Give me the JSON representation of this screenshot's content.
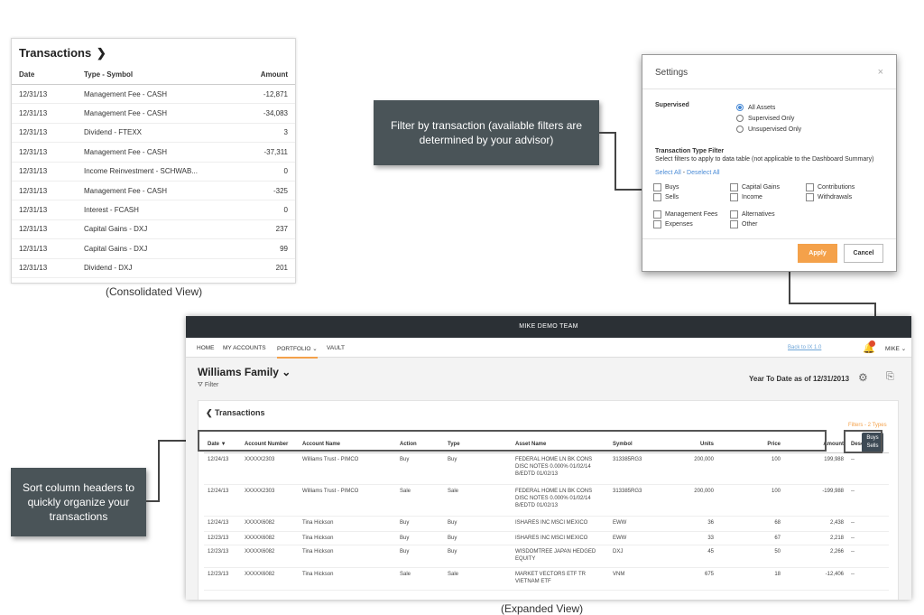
{
  "consolidated": {
    "title": "Transactions",
    "title_chevron": "❯",
    "headers": [
      "Date",
      "Type - Symbol",
      "Amount"
    ],
    "rows": [
      [
        "12/31/13",
        "Management Fee - CASH",
        "-12,871"
      ],
      [
        "12/31/13",
        "Management Fee - CASH",
        "-34,083"
      ],
      [
        "12/31/13",
        "Dividend - FTEXX",
        "3"
      ],
      [
        "12/31/13",
        "Management Fee - CASH",
        "-37,311"
      ],
      [
        "12/31/13",
        "Income Reinvestment - SCHWAB...",
        "0"
      ],
      [
        "12/31/13",
        "Management Fee - CASH",
        "-325"
      ],
      [
        "12/31/13",
        "Interest - FCASH",
        "0"
      ],
      [
        "12/31/13",
        "Capital Gains - DXJ",
        "237"
      ],
      [
        "12/31/13",
        "Capital Gains - DXJ",
        "99"
      ],
      [
        "12/31/13",
        "Dividend - DXJ",
        "201"
      ]
    ],
    "caption": "(Consolidated View)"
  },
  "callouts": {
    "filter": "Filter by transaction (available filters are determined by your advisor)",
    "sort": "Sort column headers to quickly organize your transactions"
  },
  "settings": {
    "title": "Settings",
    "close": "×",
    "supervised_label": "Supervised",
    "radios": [
      {
        "label": "All Assets",
        "checked": true
      },
      {
        "label": "Supervised Only",
        "checked": false
      },
      {
        "label": "Unsupervised Only",
        "checked": false
      }
    ],
    "type_filter_title": "Transaction Type Filter",
    "type_filter_desc": "Select filters to apply to data table (not applicable to the Dashboard Summary)",
    "select_all": "Select All",
    "separator": " - ",
    "deselect_all": "Deselect All",
    "checkboxes": [
      "Buys",
      "Sells",
      "Capital Gains",
      "Income",
      "Contributions",
      "Withdrawals",
      "Management Fees",
      "Expenses",
      "Alternatives",
      "Other"
    ],
    "apply": "Apply",
    "cancel": "Cancel"
  },
  "app": {
    "team": "MIKE DEMO TEAM",
    "nav": [
      "HOME",
      "MY ACCOUNTS",
      "PORTFOLIO ⌄",
      "VAULT"
    ],
    "back_link": "Back to IX 1.0",
    "user": "MIKE ⌄",
    "family": "Williams Family ⌄",
    "filter_link": "⛛ Filter",
    "ytd": "Year To Date as of 12/31/2013",
    "gear_icon": "gear-icon",
    "export_icon": "export-icon",
    "card_title": "❮ Transactions",
    "filters_note": "Filters - 2 Types",
    "tooltip": [
      "Buys",
      "Sells"
    ],
    "headers": [
      "Date ▼",
      "Account Number",
      "Account Name",
      "Action",
      "Type",
      "Asset Name",
      "Symbol",
      "Units",
      "Price",
      "Amount",
      "Description"
    ],
    "rows": [
      [
        "12/24/13",
        "XXXXX2303",
        "Williams Trust - PIMCO",
        "Buy",
        "Buy",
        "FEDERAL HOME LN BK CONS DISC NOTES 0.000% 01/02/14 B/EDTD 01/02/13",
        "313385RG3",
        "200,000",
        "100",
        "199,988",
        "--"
      ],
      [
        "12/24/13",
        "XXXXX2303",
        "Williams Trust - PIMCO",
        "Sale",
        "Sale",
        "FEDERAL HOME LN BK CONS DISC NOTES 0.000% 01/02/14 B/EDTD 01/02/13",
        "313385RG3",
        "200,000",
        "100",
        "-199,988",
        "--"
      ],
      [
        "12/24/13",
        "XXXXX6082",
        "Tina Hickson",
        "Buy",
        "Buy",
        "ISHARES INC MSCI MEXICO",
        "EWW",
        "36",
        "68",
        "2,438",
        "--"
      ],
      [
        "12/23/13",
        "XXXXX6082",
        "Tina Hickson",
        "Buy",
        "Buy",
        "ISHARES INC MSCI MEXICO",
        "EWW",
        "33",
        "67",
        "2,218",
        "--"
      ],
      [
        "12/23/13",
        "XXXXX6082",
        "Tina Hickson",
        "Buy",
        "Buy",
        "WISDOMTREE JAPAN HEDGED EQUITY",
        "DXJ",
        "45",
        "50",
        "2,266",
        "--"
      ],
      [
        "12/23/13",
        "XXXXX6082",
        "Tina Hickson",
        "Sale",
        "Sale",
        "MARKET VECTORS ETF TR VIETNAM ETF",
        "VNM",
        "675",
        "18",
        "-12,406",
        "--"
      ]
    ],
    "caption": "(Expanded View)"
  }
}
